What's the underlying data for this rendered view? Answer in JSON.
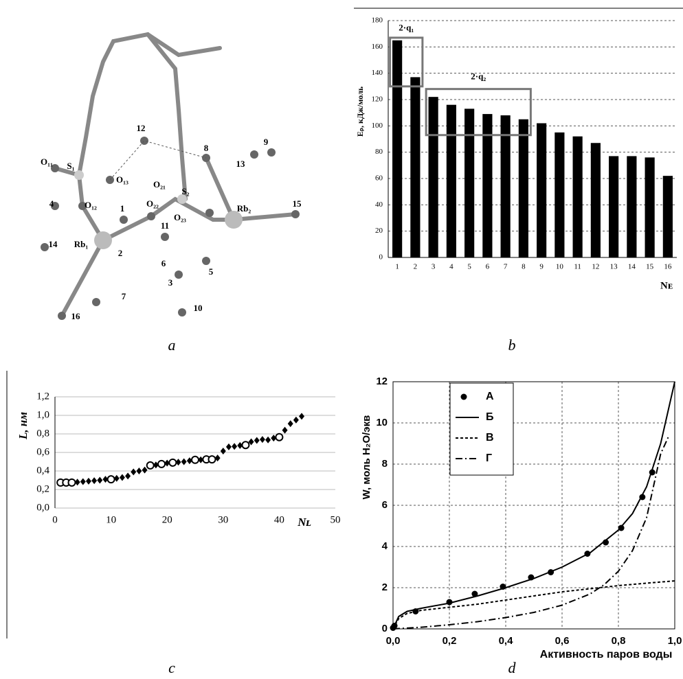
{
  "figure": {
    "captions": [
      "a",
      "b",
      "c",
      "d"
    ]
  },
  "molecule": {
    "labels": [
      "12",
      "8",
      "9",
      "13",
      "O₁₁",
      "S₁",
      "O₁₃",
      "O₂₁",
      "S₂",
      "4",
      "O₁₂",
      "1",
      "O₂₂",
      "15",
      "O₂₃",
      "Rb₂",
      "11",
      "Rb₁",
      "2",
      "14",
      "6",
      "5",
      "3",
      "7",
      "10",
      "16"
    ]
  },
  "chart_data": [
    {
      "type": "bar",
      "ylabel": "Eₚ, кДж/моль",
      "xlabel": "Nᴇ",
      "categories": [
        1,
        2,
        3,
        4,
        5,
        6,
        7,
        8,
        9,
        10,
        11,
        12,
        13,
        14,
        15,
        16
      ],
      "values": [
        165,
        137,
        122,
        116,
        113,
        109,
        108,
        105,
        102,
        95,
        92,
        87,
        77,
        77,
        76,
        62
      ],
      "color": "#000000",
      "ylim": [
        0,
        180
      ],
      "yticks": [
        0,
        20,
        40,
        60,
        80,
        100,
        120,
        140,
        160,
        180
      ],
      "grid": true,
      "annotations": [
        "2·q₁",
        "2·q₂"
      ]
    },
    {
      "type": "scatter",
      "ylabel": "L, нм",
      "xlabel": "Nʟ",
      "xlim": [
        0,
        50
      ],
      "xticks": [
        0,
        10,
        20,
        30,
        40,
        50
      ],
      "ylim": [
        0,
        1.2
      ],
      "yticks": [
        {
          "value": 0,
          "label": "0,0"
        },
        {
          "value": 0.2,
          "label": "0,2"
        },
        {
          "value": 0.4,
          "label": "0,4"
        },
        {
          "value": 0.6,
          "label": "0,6"
        },
        {
          "value": 0.8,
          "label": "0,8"
        },
        {
          "value": 1.0,
          "label": "1,0"
        },
        {
          "value": 1.2,
          "label": "1,2"
        }
      ],
      "grid": true,
      "series": [
        {
          "marker": "diamond",
          "color": "#000000",
          "x": [
            4,
            5,
            6,
            7,
            8,
            9,
            11,
            12,
            13,
            14,
            15,
            16,
            18,
            20,
            22,
            23,
            24,
            26,
            29,
            30,
            31,
            32,
            33,
            35,
            36,
            37,
            38,
            39,
            41,
            42,
            43,
            44
          ],
          "values": [
            0.28,
            0.285,
            0.29,
            0.295,
            0.3,
            0.31,
            0.32,
            0.33,
            0.345,
            0.39,
            0.4,
            0.41,
            0.465,
            0.485,
            0.495,
            0.5,
            0.51,
            0.52,
            0.54,
            0.615,
            0.66,
            0.665,
            0.675,
            0.715,
            0.73,
            0.74,
            0.735,
            0.755,
            0.84,
            0.91,
            0.95,
            0.99
          ]
        },
        {
          "marker": "open-circle",
          "color": "#000000",
          "x": [
            1,
            2,
            3,
            10,
            17,
            19,
            21,
            25,
            27,
            28,
            34,
            40
          ],
          "values": [
            0.275,
            0.275,
            0.275,
            0.31,
            0.46,
            0.475,
            0.49,
            0.52,
            0.525,
            0.525,
            0.68,
            0.765
          ]
        }
      ]
    },
    {
      "type": "line",
      "ylabel": "W, моль H₂O/экв",
      "xlabel": "Активность паров воды",
      "legend": "upper left",
      "xlim": [
        0,
        1
      ],
      "xticks": [
        {
          "value": 0,
          "label": "0,0"
        },
        {
          "value": 0.2,
          "label": "0,2"
        },
        {
          "value": 0.4,
          "label": "0,4"
        },
        {
          "value": 0.6,
          "label": "0,6"
        },
        {
          "value": 0.8,
          "label": "0,8"
        },
        {
          "value": 1,
          "label": "1,0"
        }
      ],
      "ylim": [
        0,
        12
      ],
      "yticks": [
        0,
        2,
        4,
        6,
        8,
        10,
        12
      ],
      "grid": true,
      "series": [
        {
          "name": "А",
          "style": "points",
          "color": "#000000",
          "x": [
            0,
            0.005,
            0.08,
            0.2,
            0.29,
            0.39,
            0.49,
            0.56,
            0.69,
            0.755,
            0.81,
            0.885,
            0.92
          ],
          "values": [
            0.05,
            0.15,
            0.85,
            1.3,
            1.7,
            2.05,
            2.5,
            2.75,
            3.65,
            4.2,
            4.9,
            6.4,
            7.6
          ]
        },
        {
          "name": "Б",
          "style": "solid",
          "color": "#000000",
          "x": [
            0,
            0.02,
            0.05,
            0.1,
            0.2,
            0.3,
            0.4,
            0.5,
            0.6,
            0.7,
            0.8,
            0.85,
            0.9,
            0.95,
            1.0
          ],
          "values": [
            0,
            0.6,
            0.85,
            1.0,
            1.25,
            1.6,
            2.0,
            2.45,
            3.0,
            3.7,
            4.8,
            5.6,
            6.9,
            9.0,
            12.0
          ]
        },
        {
          "name": "В",
          "style": "dashed",
          "color": "#000000",
          "x": [
            0,
            0.02,
            0.05,
            0.1,
            0.2,
            0.3,
            0.4,
            0.5,
            0.6,
            0.7,
            0.8,
            0.9,
            1.0
          ],
          "values": [
            0,
            0.5,
            0.75,
            0.9,
            1.05,
            1.2,
            1.4,
            1.6,
            1.8,
            1.95,
            2.1,
            2.22,
            2.33
          ]
        },
        {
          "name": "Г",
          "style": "dashdot",
          "color": "#000000",
          "x": [
            0,
            0.1,
            0.2,
            0.3,
            0.4,
            0.5,
            0.6,
            0.7,
            0.75,
            0.8,
            0.85,
            0.9,
            0.95,
            0.98
          ],
          "values": [
            0,
            0.08,
            0.2,
            0.35,
            0.55,
            0.8,
            1.15,
            1.7,
            2.15,
            2.8,
            3.8,
            5.4,
            8.5,
            9.4
          ]
        }
      ]
    }
  ]
}
